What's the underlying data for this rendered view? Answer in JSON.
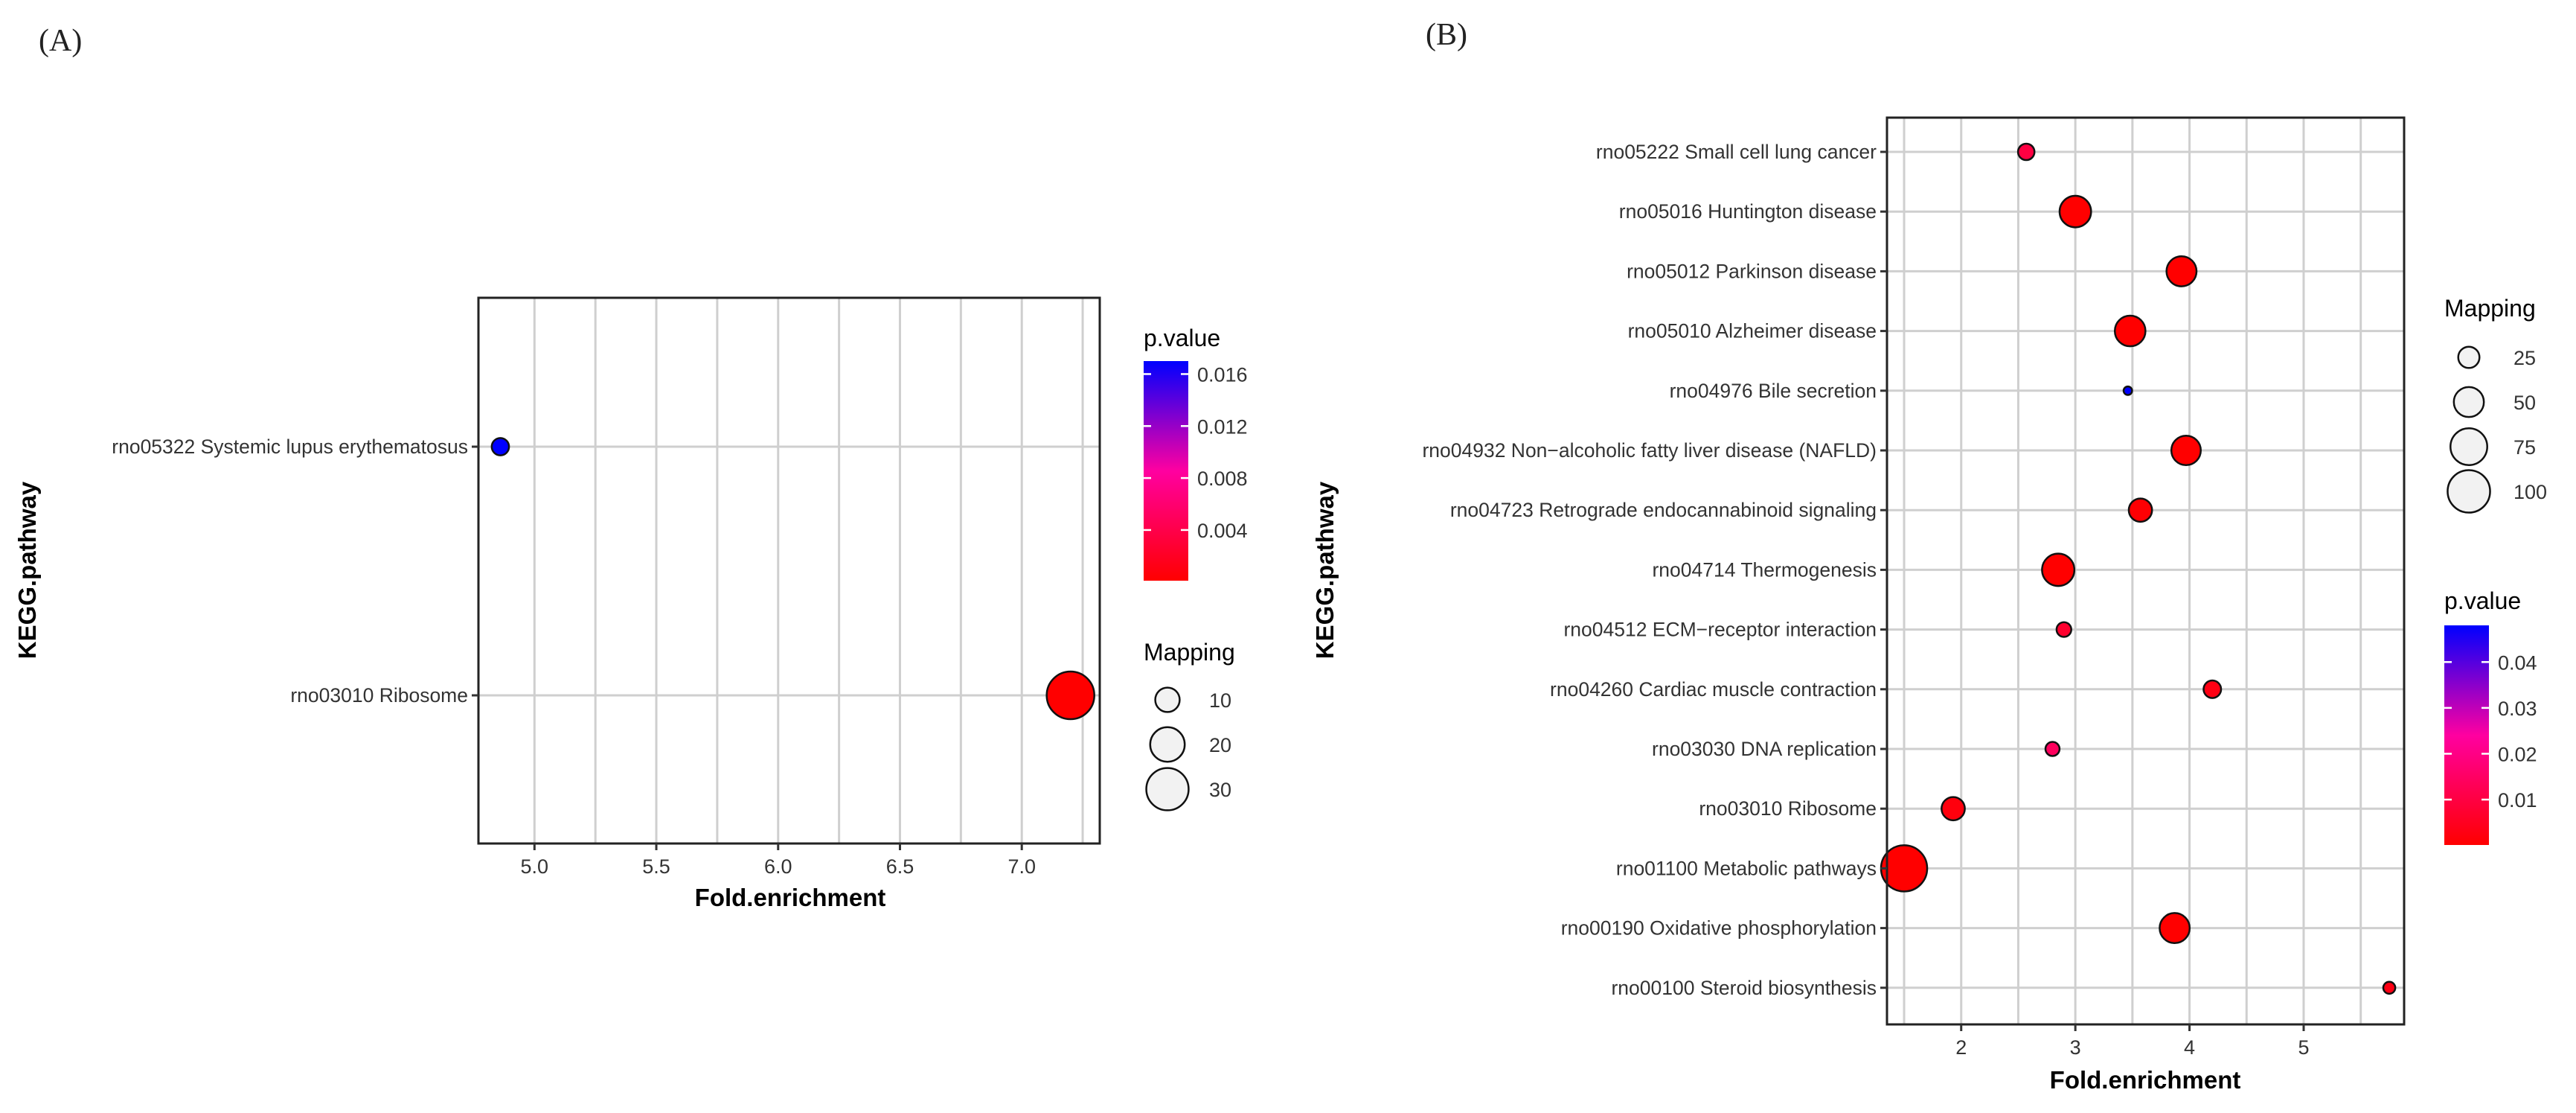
{
  "panels": [
    {
      "label": "(A)",
      "chart_data": {
        "type": "scatter",
        "xlabel": "Fold.enrichment",
        "ylabel": "KEGG.pathway",
        "xlim": [
          4.77,
          7.32
        ],
        "x_ticks": [
          5.0,
          5.5,
          6.0,
          6.5,
          7.0
        ],
        "x_tick_labels": [
          "5.0",
          "5.5",
          "6.0",
          "6.5",
          "7.0"
        ],
        "grid": true,
        "categories": [
          "rno05322 Systemic lupus erythematosus",
          "rno03010 Ribosome"
        ],
        "points": [
          {
            "pathway": "rno05322 Systemic lupus erythematosus",
            "fold_enrichment": 4.86,
            "mapping": 5,
            "p_value": 0.017
          },
          {
            "pathway": "rno03010 Ribosome",
            "fold_enrichment": 7.2,
            "mapping": 38,
            "p_value": 0.0001
          }
        ],
        "size_legend": {
          "title": "Mapping",
          "values": [
            10,
            20,
            30
          ],
          "labels": [
            "10",
            "20",
            "30"
          ],
          "max_value": 38
        },
        "color_legend": {
          "title": "p.value",
          "range": [
            0.0001,
            0.017
          ],
          "ticks": [
            0.016,
            0.012,
            0.008,
            0.004
          ],
          "tick_labels": [
            "0.016",
            "0.012",
            "0.008",
            "0.004"
          ],
          "low_color": "#ff0000",
          "high_color": "#0000ff"
        }
      }
    },
    {
      "label": "(B)",
      "chart_data": {
        "type": "scatter",
        "xlabel": "Fold.enrichment",
        "ylabel": "KEGG.pathway",
        "xlim": [
          1.35,
          5.88
        ],
        "x_ticks": [
          2,
          3,
          4,
          5
        ],
        "x_tick_labels": [
          "2",
          "3",
          "4",
          "5"
        ],
        "grid": true,
        "categories": [
          "rno05222 Small cell lung cancer",
          "rno05016 Huntington disease",
          "rno05012 Parkinson disease",
          "rno05010 Alzheimer disease",
          "rno04976 Bile secretion",
          "rno04932 Non−alcoholic fatty liver disease (NAFLD)",
          "rno04723 Retrograde endocannabinoid signaling",
          "rno04714 Thermogenesis",
          "rno04512 ECM−receptor interaction",
          "rno04260 Cardiac muscle contraction",
          "rno03030 DNA replication",
          "rno03010 Ribosome",
          "rno01100 Metabolic pathways",
          "rno00190 Oxidative phosphorylation",
          "rno00100 Steroid biosynthesis"
        ],
        "points": [
          {
            "pathway": "rno05222 Small cell lung cancer",
            "fold_enrichment": 2.57,
            "mapping": 15,
            "p_value": 0.01
          },
          {
            "pathway": "rno05016 Huntington disease",
            "fold_enrichment": 3.0,
            "mapping": 55,
            "p_value": 0.0001
          },
          {
            "pathway": "rno05012 Parkinson disease",
            "fold_enrichment": 3.93,
            "mapping": 50,
            "p_value": 0.0001
          },
          {
            "pathway": "rno05010 Alzheimer disease",
            "fold_enrichment": 3.48,
            "mapping": 52,
            "p_value": 0.0001
          },
          {
            "pathway": "rno04976 Bile secretion",
            "fold_enrichment": 3.46,
            "mapping": 4,
            "p_value": 0.048
          },
          {
            "pathway": "rno04932 Non−alcoholic fatty liver disease (NAFLD)",
            "fold_enrichment": 3.97,
            "mapping": 48,
            "p_value": 0.0001
          },
          {
            "pathway": "rno04723 Retrograde endocannabinoid signaling",
            "fold_enrichment": 3.57,
            "mapping": 30,
            "p_value": 0.0005
          },
          {
            "pathway": "rno04714 Thermogenesis",
            "fold_enrichment": 2.85,
            "mapping": 58,
            "p_value": 0.0001
          },
          {
            "pathway": "rno04512 ECM−receptor interaction",
            "fold_enrichment": 2.9,
            "mapping": 12,
            "p_value": 0.007
          },
          {
            "pathway": "rno04260 Cardiac muscle contraction",
            "fold_enrichment": 4.2,
            "mapping": 17,
            "p_value": 0.003
          },
          {
            "pathway": "rno03030 DNA replication",
            "fold_enrichment": 2.8,
            "mapping": 11,
            "p_value": 0.014
          },
          {
            "pathway": "rno03010 Ribosome",
            "fold_enrichment": 1.93,
            "mapping": 30,
            "p_value": 0.002
          },
          {
            "pathway": "rno01100 Metabolic pathways",
            "fold_enrichment": 1.5,
            "mapping": 118,
            "p_value": 0.0001
          },
          {
            "pathway": "rno00190 Oxidative phosphorylation",
            "fold_enrichment": 3.87,
            "mapping": 50,
            "p_value": 0.0001
          },
          {
            "pathway": "rno00100 Steroid biosynthesis",
            "fold_enrichment": 5.75,
            "mapping": 8,
            "p_value": 0.003
          }
        ],
        "size_legend": {
          "title": "Mapping",
          "values": [
            25,
            50,
            75,
            100
          ],
          "labels": [
            "25",
            "50",
            "75",
            "100"
          ],
          "max_value": 118
        },
        "color_legend": {
          "title": "p.value",
          "range": [
            0.0001,
            0.048
          ],
          "ticks": [
            0.04,
            0.03,
            0.02,
            0.01
          ],
          "tick_labels": [
            "0.04",
            "0.03",
            "0.02",
            "0.01"
          ],
          "low_color": "#ff0000",
          "high_color": "#0000ff"
        }
      }
    }
  ]
}
